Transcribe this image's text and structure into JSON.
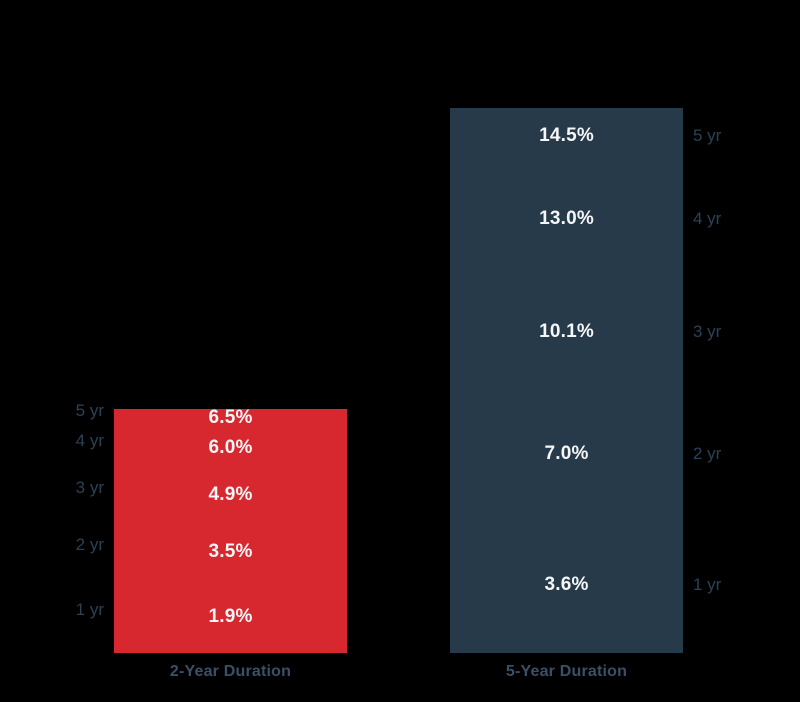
{
  "background_color": "#000000",
  "chart_data": {
    "type": "bar",
    "variant": "cumulative-annotated-columns",
    "title": "",
    "xlabel": "",
    "ylabel": "",
    "ylim": [
      0,
      14.5
    ],
    "value_unit": "%",
    "grid": false,
    "legend": false,
    "axis_label_color": "#2c4154",
    "category_label_color": "#3b5066",
    "value_text_color": "#f5f6f7",
    "categories": [
      "2-Year Duration",
      "5-Year Duration"
    ],
    "series": [
      {
        "name": "2-Year Duration",
        "color": "#d7282f",
        "year_label_side": "left",
        "levels": [
          {
            "year": "1 yr",
            "value": 1.9,
            "label": "1.9%"
          },
          {
            "year": "2 yr",
            "value": 3.5,
            "label": "3.5%"
          },
          {
            "year": "3 yr",
            "value": 4.9,
            "label": "4.9%"
          },
          {
            "year": "4 yr",
            "value": 6.0,
            "label": "6.0%"
          },
          {
            "year": "5 yr",
            "value": 6.5,
            "label": "6.5%"
          }
        ]
      },
      {
        "name": "5-Year Duration",
        "color": "#273a49",
        "year_label_side": "right",
        "levels": [
          {
            "year": "1 yr",
            "value": 3.6,
            "label": "3.6%"
          },
          {
            "year": "2 yr",
            "value": 7.0,
            "label": "7.0%"
          },
          {
            "year": "3 yr",
            "value": 10.1,
            "label": "10.1%"
          },
          {
            "year": "4 yr",
            "value": 13.0,
            "label": "13.0%"
          },
          {
            "year": "5 yr",
            "value": 14.5,
            "label": "14.5%"
          }
        ]
      }
    ]
  }
}
